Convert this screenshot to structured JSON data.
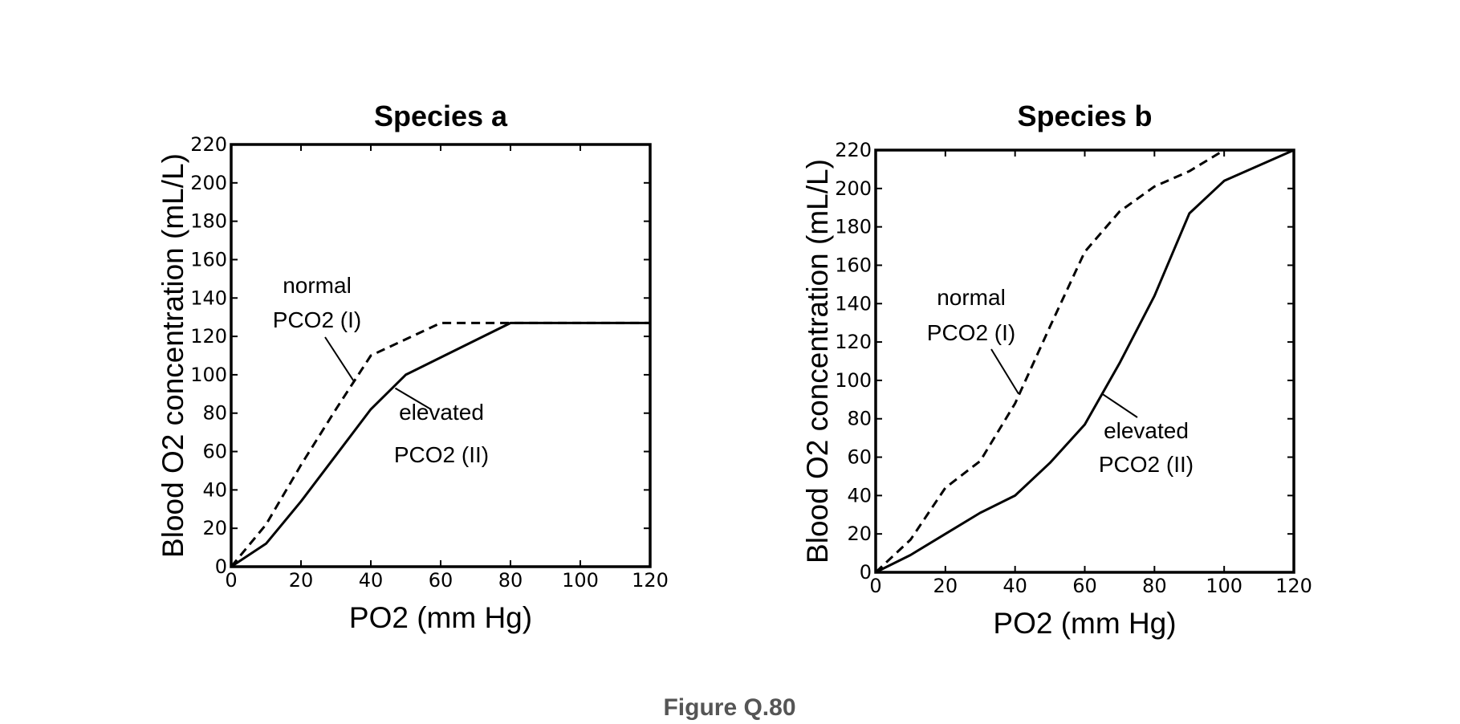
{
  "chart_data": [
    {
      "type": "line",
      "title": "Species a",
      "xlabel": "PO2 (mm Hg)",
      "ylabel": "Blood O2 concentration (mL/L)",
      "xlim": [
        0,
        120
      ],
      "ylim": [
        0,
        220
      ],
      "xticks": [
        0,
        20,
        40,
        60,
        80,
        100,
        120
      ],
      "yticks": [
        0,
        20,
        40,
        60,
        80,
        100,
        120,
        140,
        160,
        180,
        200,
        220
      ],
      "grid": false,
      "series": [
        {
          "style": "dashed",
          "x": [
            0,
            10,
            20,
            30,
            40,
            60,
            80,
            100,
            120
          ],
          "y": [
            0,
            22,
            53,
            82,
            110,
            127,
            127,
            127,
            127
          ]
        },
        {
          "style": "solid",
          "x": [
            0,
            10,
            20,
            30,
            40,
            50,
            60,
            70,
            80,
            100,
            120
          ],
          "y": [
            0,
            12,
            34,
            58,
            82,
            100,
            109,
            118,
            127,
            127,
            127
          ]
        }
      ],
      "annotations": [
        {
          "lines": [
            "normal",
            "PCO2 (I)"
          ],
          "series": 0,
          "at": [
            35,
            97
          ]
        },
        {
          "lines": [
            "elevated",
            "PCO2 (II)"
          ],
          "series": 1,
          "at": [
            47,
            93
          ]
        }
      ]
    },
    {
      "type": "line",
      "title": "Species b",
      "xlabel": "PO2 (mm Hg)",
      "ylabel": "Blood O2 concentration (mL/L)",
      "xlim": [
        0,
        120
      ],
      "ylim": [
        0,
        220
      ],
      "xticks": [
        0,
        20,
        40,
        60,
        80,
        100,
        120
      ],
      "yticks": [
        0,
        20,
        40,
        60,
        80,
        100,
        120,
        140,
        160,
        180,
        200,
        220
      ],
      "grid": false,
      "series": [
        {
          "style": "dashed",
          "x": [
            0,
            10,
            20,
            30,
            40,
            50,
            60,
            70,
            80,
            90,
            100
          ],
          "y": [
            0,
            17,
            44,
            58,
            88,
            128,
            167,
            188,
            201,
            209,
            220
          ]
        },
        {
          "style": "solid",
          "x": [
            0,
            10,
            20,
            30,
            40,
            50,
            60,
            70,
            80,
            90,
            100,
            120
          ],
          "y": [
            0,
            9,
            20,
            31,
            40,
            57,
            77,
            109,
            144,
            187,
            204,
            220
          ]
        }
      ],
      "annotations": [
        {
          "lines": [
            "normal",
            "PCO2 (I)"
          ],
          "series": 0,
          "at": [
            41,
            93
          ]
        },
        {
          "lines": [
            "elevated",
            "PCO2 (II)"
          ],
          "series": 1,
          "at": [
            65,
            93
          ]
        }
      ]
    }
  ],
  "caption": "Figure Q.80"
}
